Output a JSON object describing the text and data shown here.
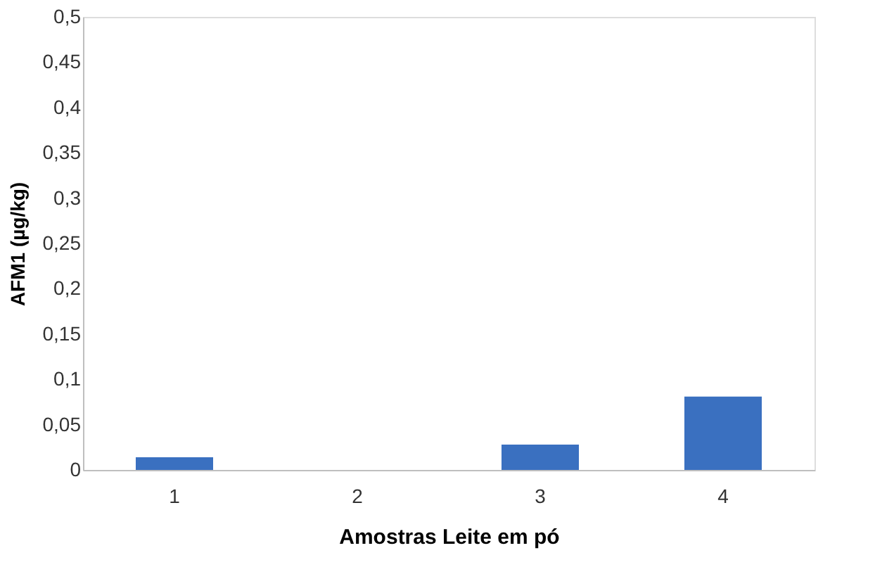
{
  "chart_data": {
    "type": "bar",
    "xlabel": "Amostras Leite em pó",
    "ylabel": "AFM1 (µg/kg)",
    "categories": [
      "1",
      "2",
      "3",
      "4"
    ],
    "values": [
      0.014,
      0,
      0.028,
      0.081
    ],
    "color": "#3a70c0",
    "ylim": [
      0,
      0.5
    ],
    "yticks": [
      0,
      {
        "value": 0.05,
        "label": "0,05"
      },
      {
        "value": 0.1,
        "label": "0,1"
      },
      {
        "value": 0.15,
        "label": "0,15"
      },
      {
        "value": 0.2,
        "label": "0,2"
      },
      {
        "value": 0.25,
        "label": "0,25"
      },
      {
        "value": 0.3,
        "label": "0,3"
      },
      {
        "value": 0.35,
        "label": "0,35"
      },
      {
        "value": 0.4,
        "label": "0,4"
      },
      {
        "value": 0.45,
        "label": "0,45"
      },
      {
        "value": 0.5,
        "label": "0,5"
      }
    ],
    "grid": false
  }
}
